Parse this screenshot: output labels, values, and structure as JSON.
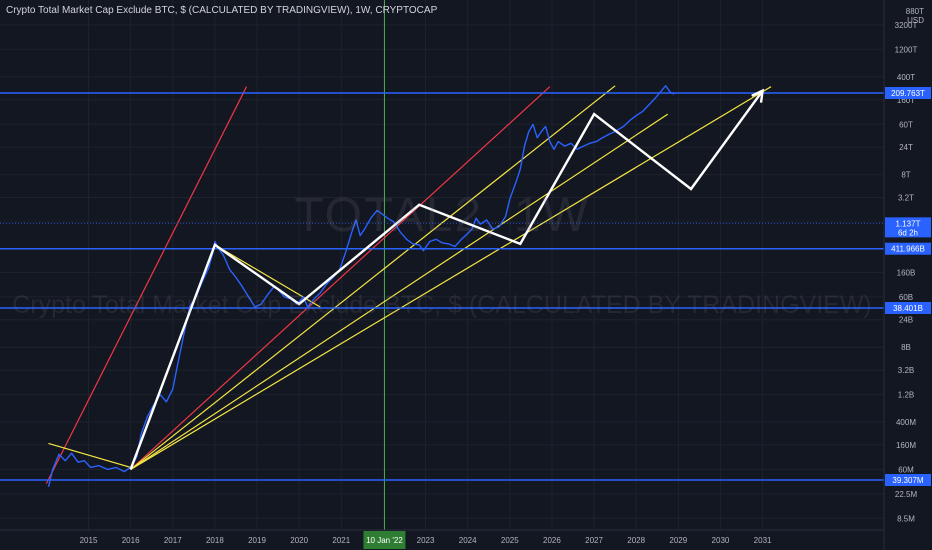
{
  "header": {
    "title": "Crypto Total Market Cap Exclude BTC, $ (CALCULATED BY TRADINGVIEW), 1W, CRYPTOCAP"
  },
  "watermark": {
    "symbol": "TOTAL2, 1W",
    "description": "Crypto Total Market Cap Exclude BTC, $ (CALCULATED BY TRADINGVIEW)"
  },
  "axis": {
    "currency_top": "880T",
    "currency": "USD"
  },
  "colors": {
    "background": "#131722",
    "price_line": "#2962ff",
    "level_line": "#2962ff",
    "red_lines": "#f23645",
    "yellow_lines": "#f5e642",
    "projection": "#ffffff",
    "vertical_marker": "#4caf50"
  },
  "chart_data": {
    "type": "line",
    "scale": "log",
    "title": "Crypto Total Market Cap Exclude BTC, $ (CALCULATED BY TRADINGVIEW), 1W, CRYPTOCAP",
    "xlabel": "",
    "ylabel": "",
    "grid": true,
    "x_ticks": [
      "2015",
      "2016",
      "2017",
      "2018",
      "2019",
      "2020",
      "2021",
      "2023",
      "2024",
      "2025",
      "2026",
      "2027",
      "2028",
      "2029",
      "2030",
      "2031"
    ],
    "y_ticks": [
      "3200T",
      "1200T",
      "400T",
      "160T",
      "60T",
      "24T",
      "8T",
      "3.2T",
      "1.2T",
      "160B",
      "60B",
      "24B",
      "8B",
      "3.2B",
      "1.2B",
      "400M",
      "160M",
      "60M",
      "22.5M",
      "8.5M"
    ],
    "vertical_marker": {
      "date": "2022-01-10",
      "label": "10 Jan '22"
    },
    "levels": [
      {
        "label": "209.763T",
        "value": 209763000000000.0
      },
      {
        "label": "1.137T",
        "sublabel": "6d 2h",
        "value": 1137000000000.0,
        "current": true
      },
      {
        "label": "411.966B",
        "value": 411966000000.0
      },
      {
        "label": "38.401B",
        "value": 38401000000.0
      },
      {
        "label": "39.307M",
        "value": 39307000.0
      }
    ],
    "series": [
      {
        "points": [
          [
            2014.05,
            30000000.0
          ],
          [
            2014.15,
            60000000.0
          ],
          [
            2014.3,
            110000000.0
          ],
          [
            2014.45,
            85000000.0
          ],
          [
            2014.6,
            115000000.0
          ],
          [
            2014.75,
            80000000.0
          ],
          [
            2014.9,
            85000000.0
          ],
          [
            2015.05,
            65000000.0
          ],
          [
            2015.25,
            70000000.0
          ],
          [
            2015.45,
            60000000.0
          ],
          [
            2015.65,
            65000000.0
          ],
          [
            2015.85,
            55000000.0
          ],
          [
            2016.0,
            65000000.0
          ],
          [
            2016.15,
            100000000.0
          ],
          [
            2016.25,
            250000000.0
          ],
          [
            2016.4,
            500000000.0
          ],
          [
            2016.55,
            800000000.0
          ],
          [
            2016.7,
            1200000000.0
          ],
          [
            2016.85,
            900000000.0
          ],
          [
            2017.0,
            1500000000.0
          ],
          [
            2017.1,
            3500000000.0
          ],
          [
            2017.25,
            12000000000.0
          ],
          [
            2017.4,
            40000000000.0
          ],
          [
            2017.55,
            60000000000.0
          ],
          [
            2017.7,
            110000000000.0
          ],
          [
            2017.85,
            190000000000.0
          ],
          [
            2017.95,
            350000000000.0
          ],
          [
            2018.0,
            550000000000.0
          ],
          [
            2018.1,
            400000000000.0
          ],
          [
            2018.2,
            320000000000.0
          ],
          [
            2018.35,
            180000000000.0
          ],
          [
            2018.5,
            130000000000.0
          ],
          [
            2018.65,
            90000000000.0
          ],
          [
            2018.8,
            60000000000.0
          ],
          [
            2018.95,
            40000000000.0
          ],
          [
            2019.1,
            45000000000.0
          ],
          [
            2019.25,
            65000000000.0
          ],
          [
            2019.4,
            90000000000.0
          ],
          [
            2019.5,
            80000000000.0
          ],
          [
            2019.65,
            60000000000.0
          ],
          [
            2019.8,
            55000000000.0
          ],
          [
            2019.95,
            45000000000.0
          ],
          [
            2020.1,
            60000000000.0
          ],
          [
            2020.2,
            40000000000.0
          ],
          [
            2020.35,
            55000000000.0
          ],
          [
            2020.5,
            70000000000.0
          ],
          [
            2020.65,
            100000000000.0
          ],
          [
            2020.8,
            130000000000.0
          ],
          [
            2020.95,
            170000000000.0
          ],
          [
            2021.1,
            350000000000.0
          ],
          [
            2021.25,
            800000000000.0
          ],
          [
            2021.35,
            1300000000000.0
          ],
          [
            2021.45,
            700000000000.0
          ],
          [
            2021.55,
            900000000000.0
          ],
          [
            2021.7,
            1400000000000.0
          ],
          [
            2021.85,
            1900000000000.0
          ],
          [
            2021.95,
            1700000000000.0
          ],
          [
            2022.1,
            1400000000000.0
          ],
          [
            2022.25,
            1200000000000.0
          ],
          [
            2022.4,
            800000000000.0
          ],
          [
            2022.55,
            600000000000.0
          ],
          [
            2022.7,
            500000000000.0
          ],
          [
            2022.85,
            480000000000.0
          ],
          [
            2022.95,
            380000000000.0
          ],
          [
            2023.1,
            550000000000.0
          ],
          [
            2023.25,
            600000000000.0
          ],
          [
            2023.4,
            520000000000.0
          ],
          [
            2023.55,
            500000000000.0
          ],
          [
            2023.7,
            450000000000.0
          ],
          [
            2023.85,
            600000000000.0
          ],
          [
            2023.95,
            700000000000.0
          ],
          [
            2024.1,
            900000000000.0
          ],
          [
            2024.2,
            1400000000000.0
          ],
          [
            2024.3,
            1100000000000.0
          ],
          [
            2024.45,
            1300000000000.0
          ],
          [
            2024.6,
            900000000000.0
          ],
          [
            2024.75,
            1000000000000.0
          ],
          [
            2024.9,
            1500000000000.0
          ],
          [
            2025.0,
            3000000000000.0
          ],
          [
            2025.15,
            6000000000000.0
          ],
          [
            2025.25,
            10000000000000.0
          ],
          [
            2025.35,
            25000000000000.0
          ],
          [
            2025.45,
            45000000000000.0
          ],
          [
            2025.55,
            60000000000000.0
          ],
          [
            2025.65,
            35000000000000.0
          ],
          [
            2025.75,
            45000000000000.0
          ],
          [
            2025.85,
            55000000000000.0
          ],
          [
            2025.95,
            30000000000000.0
          ],
          [
            2026.05,
            22000000000000.0
          ],
          [
            2026.15,
            30000000000000.0
          ],
          [
            2026.3,
            25000000000000.0
          ],
          [
            2026.45,
            28000000000000.0
          ],
          [
            2026.6,
            22000000000000.0
          ],
          [
            2026.75,
            25000000000000.0
          ],
          [
            2026.9,
            28000000000000.0
          ],
          [
            2027.05,
            30000000000000.0
          ],
          [
            2027.2,
            35000000000000.0
          ],
          [
            2027.35,
            40000000000000.0
          ],
          [
            2027.5,
            45000000000000.0
          ],
          [
            2027.7,
            55000000000000.0
          ],
          [
            2027.85,
            70000000000000.0
          ],
          [
            2028.0,
            85000000000000.0
          ],
          [
            2028.15,
            100000000000000.0
          ],
          [
            2028.3,
            130000000000000.0
          ],
          [
            2028.45,
            170000000000000.0
          ],
          [
            2028.6,
            230000000000000.0
          ],
          [
            2028.7,
            280000000000000.0
          ],
          [
            2028.8,
            220000000000000.0
          ],
          [
            2028.9,
            200000000000000.0
          ]
        ]
      }
    ],
    "annotations": {
      "red_lines": [
        {
          "from": [
            2014.0,
            34000000.0
          ],
          "to": [
            2018.75,
            270000000000000.0
          ]
        },
        {
          "from": [
            2016.0,
            60000000.0
          ],
          "to": [
            2025.95,
            270000000000000.0
          ]
        }
      ],
      "yellow_lines": [
        {
          "from": [
            2014.05,
            170000000.0
          ],
          "to": [
            2016.0,
            65000000.0
          ]
        },
        {
          "from": [
            2018.0,
            480000000000.0
          ],
          "to": [
            2020.5,
            40000000000.0
          ]
        },
        {
          "from": [
            2016.0,
            60000000.0
          ],
          "to": [
            2027.5,
            280000000000000.0
          ]
        },
        {
          "from": [
            2016.0,
            60000000.0
          ],
          "to": [
            2028.75,
            90000000000000.0
          ]
        },
        {
          "from": [
            2016.0,
            60000000.0
          ],
          "to": [
            2031.2,
            270000000000000.0
          ]
        }
      ],
      "white_projection": [
        [
          2016.0,
          60000000.0
        ],
        [
          2018.0,
          480000000000.0
        ],
        [
          2020.0,
          45000000000.0
        ],
        [
          2022.85,
          2400000000000.0
        ],
        [
          2025.25,
          500000000000.0
        ],
        [
          2027.0,
          90000000000000.0
        ],
        [
          2029.3,
          4500000000000.0
        ],
        [
          2031.0,
          230000000000000.0
        ]
      ]
    }
  }
}
